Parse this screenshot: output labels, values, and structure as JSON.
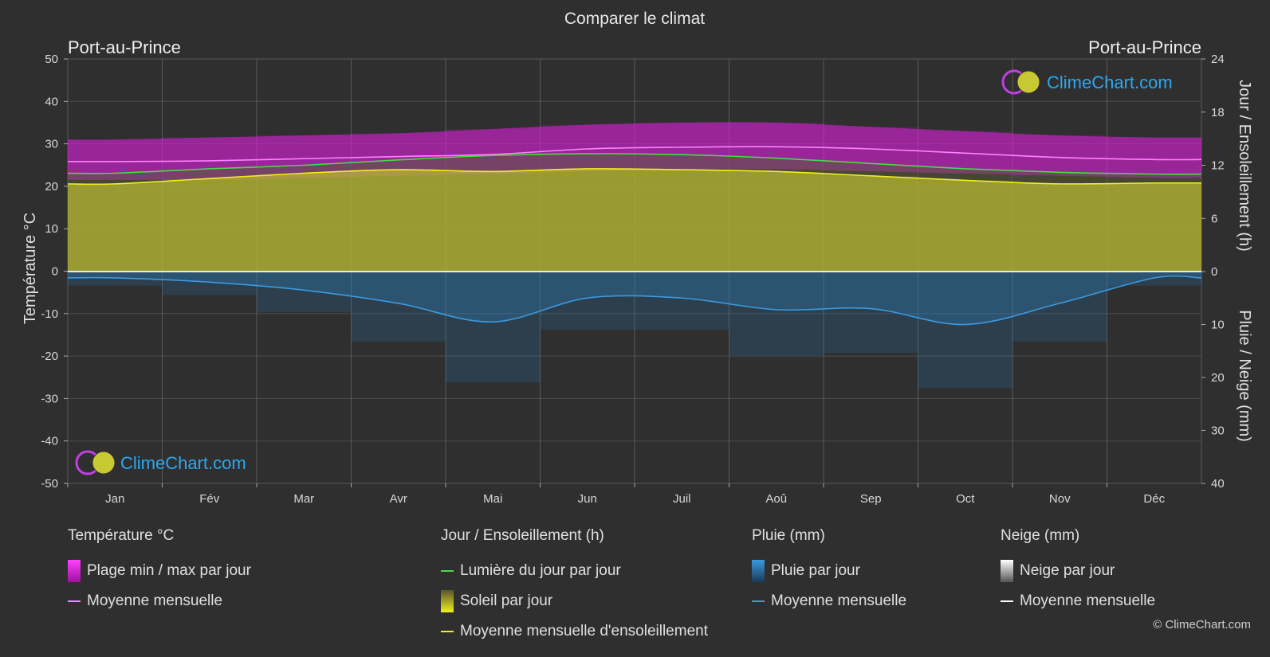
{
  "chart_data": {
    "type": "area",
    "title": "Comparer le climat",
    "location_left": "Port-au-Prince",
    "location_right": "Port-au-Prince",
    "categories": [
      "Jan",
      "Fév",
      "Mar",
      "Avr",
      "Mai",
      "Jun",
      "Juil",
      "Aoû",
      "Sep",
      "Oct",
      "Nov",
      "Déc"
    ],
    "y_left": {
      "label": "Température °C",
      "range": [
        -50,
        50
      ],
      "ticks": [
        "50",
        "40",
        "30",
        "20",
        "10",
        "0",
        "-10",
        "-20",
        "-30",
        "-40",
        "-50"
      ]
    },
    "y_right_top": {
      "label": "Jour / Ensoleillement (h)",
      "range": [
        0,
        24
      ],
      "ticks": [
        "24",
        "18",
        "12",
        "6",
        "0"
      ]
    },
    "y_right_bottom": {
      "label": "Pluie / Neige (mm)",
      "range": [
        0,
        40
      ],
      "ticks": [
        "0",
        "10",
        "20",
        "30",
        "40"
      ]
    },
    "series": [
      {
        "name": "Plage min / max par jour",
        "kind": "band",
        "color": "#e020e0",
        "min": [
          21.5,
          21.5,
          22.0,
          22.5,
          23.0,
          23.5,
          24.0,
          24.0,
          23.5,
          23.0,
          22.5,
          22.0
        ],
        "max": [
          31.0,
          31.5,
          32.0,
          32.5,
          33.5,
          34.5,
          35.0,
          35.0,
          34.0,
          33.0,
          32.0,
          31.5
        ]
      },
      {
        "name": "Moyenne mensuelle",
        "kind": "temp_mean",
        "color": "#ff80ff",
        "values": [
          25.8,
          26.0,
          26.5,
          27.0,
          27.5,
          28.8,
          29.2,
          29.3,
          28.8,
          27.8,
          26.8,
          26.3
        ]
      },
      {
        "name": "Lumière du jour par jour",
        "kind": "daylight",
        "color": "#44dd44",
        "values": [
          11.1,
          11.6,
          12.0,
          12.6,
          13.1,
          13.3,
          13.2,
          12.8,
          12.2,
          11.6,
          11.2,
          11.0
        ]
      },
      {
        "name": "Soleil par jour",
        "kind": "sunshine_fill",
        "color": "#c8c832",
        "values": [
          9.9,
          10.5,
          11.1,
          11.5,
          11.3,
          11.6,
          11.5,
          11.3,
          10.8,
          10.3,
          9.9,
          10.0
        ]
      },
      {
        "name": "Moyenne mensuelle d'ensoleillement",
        "kind": "sunshine_mean",
        "color": "#f0f020",
        "values": [
          9.9,
          10.5,
          11.1,
          11.5,
          11.3,
          11.6,
          11.5,
          11.3,
          10.8,
          10.3,
          9.9,
          10.0
        ]
      },
      {
        "name": "Pluie par jour",
        "kind": "rain_fill",
        "color": "#2a7ab8",
        "values": [
          1.2,
          2.0,
          3.5,
          6.0,
          9.5,
          5.0,
          5.0,
          7.2,
          7.0,
          10.0,
          6.0,
          1.2
        ]
      },
      {
        "name": "Moyenne mensuelle",
        "kind": "rain_mean",
        "color": "#3a9ae0",
        "values": [
          1.2,
          2.0,
          3.5,
          6.0,
          9.5,
          5.0,
          5.0,
          7.2,
          7.0,
          10.0,
          6.0,
          1.2
        ]
      },
      {
        "name": "Neige par jour",
        "kind": "snow_fill",
        "color": "#ffffff",
        "values": [
          0,
          0,
          0,
          0,
          0,
          0,
          0,
          0,
          0,
          0,
          0,
          0
        ]
      },
      {
        "name": "Moyenne mensuelle",
        "kind": "snow_mean",
        "color": "#ffffff",
        "values": [
          0,
          0,
          0,
          0,
          0,
          0,
          0,
          0,
          0,
          0,
          0,
          0
        ]
      }
    ],
    "grid": true
  },
  "brand": {
    "logo_text": "ClimeChart.com",
    "copyright": "© ClimeChart.com"
  },
  "legend": {
    "temperature": {
      "title": "Température °C",
      "range_label": "Plage min / max par jour",
      "mean_label": "Moyenne mensuelle"
    },
    "sun": {
      "title": "Jour / Ensoleillement (h)",
      "daylight_label": "Lumière du jour par jour",
      "sunshine_label": "Soleil par jour",
      "sunshine_mean_label": "Moyenne mensuelle d'ensoleillement"
    },
    "rain": {
      "title": "Pluie (mm)",
      "rain_label": "Pluie par jour",
      "mean_label": "Moyenne mensuelle"
    },
    "snow": {
      "title": "Neige (mm)",
      "snow_label": "Neige par jour",
      "mean_label": "Moyenne mensuelle"
    }
  },
  "colors": {
    "background": "#2f2f2f",
    "grid": "#555555",
    "temp_band": "#e020e0",
    "temp_mean": "#ff80ff",
    "daylight": "#44dd44",
    "sunshine": "#c8c832",
    "sunshine_mean": "#f0f020",
    "rain": "#2a7ab8",
    "rain_mean": "#3a9ae0",
    "snow": "#ffffff",
    "brand": "#2ca8f0"
  }
}
